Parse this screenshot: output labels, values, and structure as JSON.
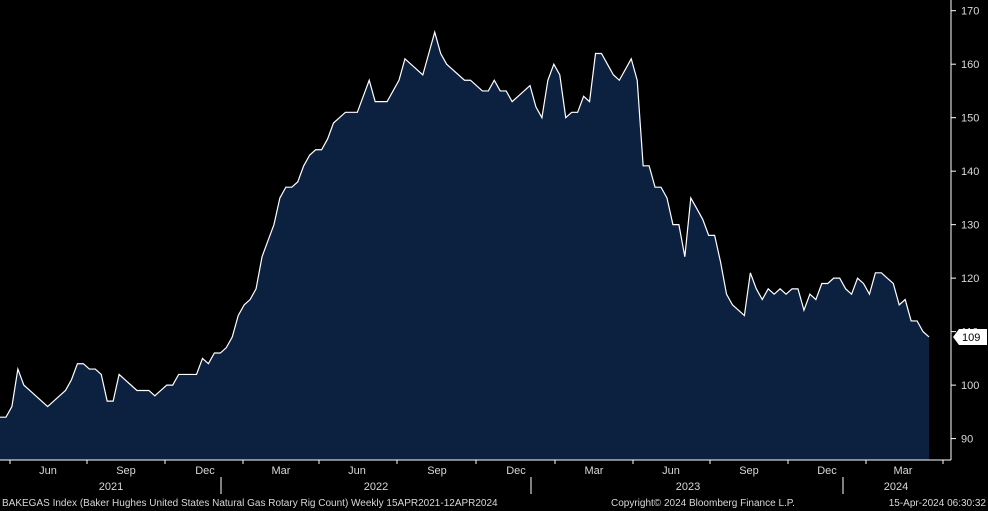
{
  "chart_data": {
    "type": "area",
    "ylim": [
      86,
      172
    ],
    "y_ticks": [
      90,
      100,
      110,
      120,
      130,
      140,
      150,
      160,
      170
    ],
    "grid": false,
    "x_month_labels": [
      "Jun",
      "Sep",
      "Dec",
      "Mar",
      "Jun",
      "Sep",
      "Dec",
      "Mar",
      "Jun",
      "Sep",
      "Dec",
      "Mar"
    ],
    "x_year_labels": [
      "2021",
      "2022",
      "2023",
      "2024"
    ],
    "series": [
      {
        "frequency": "Weekly",
        "values": [
          94,
          94,
          96,
          103,
          100,
          99,
          98,
          97,
          96,
          97,
          98,
          99,
          101,
          104,
          104,
          103,
          103,
          102,
          97,
          97,
          102,
          101,
          100,
          99,
          99,
          99,
          98,
          99,
          100,
          100,
          102,
          102,
          102,
          102,
          105,
          104,
          106,
          106,
          107,
          109,
          113,
          115,
          116,
          118,
          124,
          127,
          130,
          135,
          137,
          137,
          138,
          141,
          143,
          144,
          144,
          146,
          149,
          150,
          151,
          151,
          151,
          154,
          157,
          153,
          153,
          153,
          155,
          157,
          161,
          160,
          159,
          158,
          162,
          166,
          162,
          160,
          159,
          158,
          157,
          157,
          156,
          155,
          155,
          157,
          155,
          155,
          153,
          154,
          155,
          156,
          152,
          150,
          157,
          160,
          158,
          150,
          151,
          151,
          154,
          153,
          162,
          162,
          160,
          158,
          157,
          159,
          161,
          157,
          141,
          141,
          137,
          137,
          135,
          130,
          130,
          124,
          135,
          133,
          131,
          128,
          128,
          123,
          117,
          115,
          114,
          113,
          121,
          118,
          116,
          118,
          117,
          118,
          117,
          118,
          118,
          114,
          117,
          116,
          119,
          119,
          120,
          120,
          118,
          117,
          120,
          119,
          117,
          121,
          121,
          120,
          119,
          115,
          116,
          112,
          112,
          110,
          109
        ],
        "last_value_label": "109"
      }
    ],
    "colors": {
      "fill": "#0c2040",
      "line": "#ffffff",
      "background": "#000000",
      "last_value_tag_bg": "#ffffff",
      "last_value_tag_text": "#000000"
    }
  },
  "footer": {
    "left": "BAKEGAS Index (Baker Hughes United States Natural Gas Rotary Rig Count)  Weekly 15APR2021-12APR2024",
    "center": "Copyright© 2024 Bloomberg Finance L.P.",
    "right": "15-Apr-2024 06:30:32"
  }
}
